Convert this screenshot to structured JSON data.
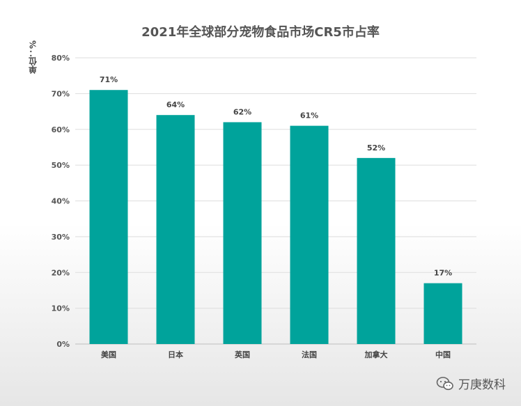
{
  "chart_data": {
    "type": "bar",
    "title": "2021年全球部分宠物食品市场CR5市占率",
    "ylabel": "单位：%",
    "categories": [
      "美国",
      "日本",
      "英国",
      "法国",
      "加拿大",
      "中国"
    ],
    "values": [
      71,
      64,
      62,
      61,
      52,
      17
    ],
    "value_labels": [
      "71%",
      "64%",
      "62%",
      "61%",
      "52%",
      "17%"
    ],
    "yticks": [
      "0%",
      "10%",
      "20%",
      "30%",
      "40%",
      "50%",
      "60%",
      "70%",
      "80%"
    ],
    "ylim": [
      0,
      80
    ],
    "grid": true,
    "bar_color": "#00A39B"
  },
  "watermark": {
    "icon": "wechat-icon",
    "text": "万庚数科"
  }
}
